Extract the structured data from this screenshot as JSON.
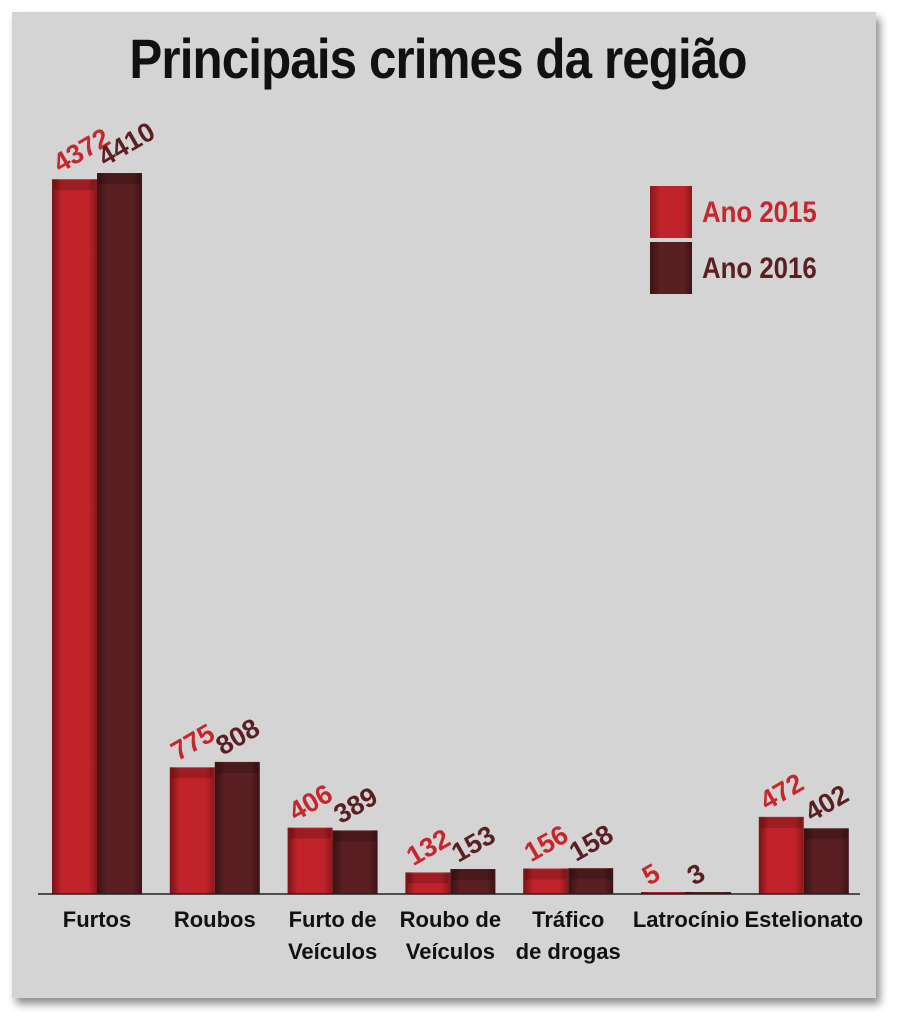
{
  "chart_data": {
    "type": "bar",
    "title": "Principais crimes da região",
    "categories": [
      [
        "Furtos"
      ],
      [
        "Roubos"
      ],
      [
        "Furto de",
        "Veículos"
      ],
      [
        "Roubo de",
        "Veículos"
      ],
      [
        "Tráfico",
        "de drogas"
      ],
      [
        "Latrocínio"
      ],
      [
        "Estelionato"
      ]
    ],
    "series": [
      {
        "name": "Ano 2015",
        "color": "#c0242a",
        "label_color": "#c8262d",
        "values": [
          4372,
          775,
          406,
          132,
          156,
          5,
          472
        ]
      },
      {
        "name": "Ano 2016",
        "color": "#5a1f22",
        "label_color": "#5a1f22",
        "values": [
          4410,
          808,
          389,
          153,
          158,
          3,
          402
        ]
      }
    ],
    "ylim": [
      0,
      4410
    ],
    "legend_position": "top-right",
    "grid": false
  }
}
